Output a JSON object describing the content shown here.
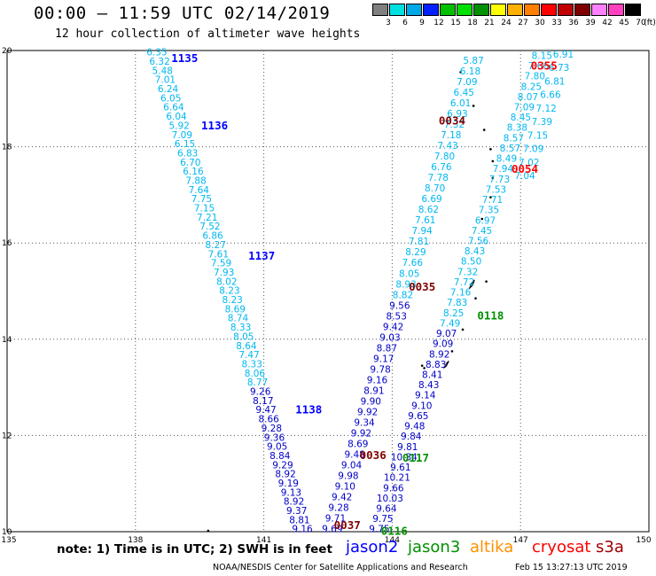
{
  "header": {
    "title": "00:00 – 11:59 UTC 02/14/2019",
    "subtitle": "12 hour collection of altimeter wave heights"
  },
  "colorbar": {
    "levels": [
      {
        "label": "3",
        "color": "#808080"
      },
      {
        "label": "6",
        "color": "#00e0e0"
      },
      {
        "label": "9",
        "color": "#00a8e8"
      },
      {
        "label": "12",
        "color": "#0020ff"
      },
      {
        "label": "15",
        "color": "#00c000"
      },
      {
        "label": "18",
        "color": "#00e000"
      },
      {
        "label": "21",
        "color": "#009000"
      },
      {
        "label": "24",
        "color": "#ffff00"
      },
      {
        "label": "27",
        "color": "#ffb000"
      },
      {
        "label": "30",
        "color": "#ff8000"
      },
      {
        "label": "33",
        "color": "#ff0000"
      },
      {
        "label": "36",
        "color": "#c00000"
      },
      {
        "label": "39",
        "color": "#800000"
      },
      {
        "label": "42",
        "color": "#ff80ff"
      },
      {
        "label": "45",
        "color": "#ff40c0"
      },
      {
        "label": "70",
        "color": "#000000"
      }
    ],
    "unit": "(ft)"
  },
  "footer": {
    "note": "note: 1) Time is in UTC; 2) SWH is in feet",
    "credit": "NOAA/NESDIS Center for Satellite Applications and Research",
    "timestamp": "Feb 15 13:27:13 UTC 2019"
  },
  "legend": [
    {
      "name": "jason2",
      "color": "#0000ff"
    },
    {
      "name": "jason3",
      "color": "#009000"
    },
    {
      "name": "altika",
      "color": "#ff9000"
    },
    {
      "name": "cryosat",
      "color": "#ff0000"
    },
    {
      "name": "s3a",
      "color": "#a00000"
    }
  ],
  "chart_data": {
    "type": "scatter",
    "xlim": [
      135,
      150
    ],
    "ylim": [
      10,
      20
    ],
    "xticks": [
      135,
      138,
      141,
      144,
      147,
      150
    ],
    "yticks": [
      10,
      12,
      14,
      16,
      18,
      20
    ],
    "grid": true,
    "tracks": [
      {
        "label": "1135",
        "label_color": "#0000ff",
        "color": "#00b8f0",
        "x0": 138.5,
        "x1": 141.9,
        "y0": 19.97,
        "y1": 10.06,
        "values": [
          "6.35",
          "6.32",
          "5.48",
          "7.01",
          "6.24",
          "6.05",
          "6.64",
          "6.04",
          "5.92",
          "7.09",
          "6.15",
          "6.83",
          "6.70",
          "6.16",
          "7.88",
          "7.64",
          "7.75",
          "7.15",
          "7.21",
          "7.52",
          "6.86",
          "8.27",
          "7.61",
          "7.59",
          "7.93",
          "8.02",
          "8.23",
          "8.23",
          "8.69",
          "8.74",
          "8.33",
          "8.05",
          "8.64",
          "7.47",
          "8.33",
          "8.06",
          "8.77",
          "9.26",
          "8.17",
          "9.47",
          "8.66",
          "9.28",
          "9.36",
          "9.05",
          "8.84",
          "9.29",
          "8.92",
          "9.19",
          "9.13",
          "8.92",
          "9.37",
          "8.81",
          "9.16"
        ],
        "dark_from": 37
      },
      {
        "label": "0034",
        "label_color": "#800000",
        "color": "#00b8f0",
        "x0": 145.9,
        "x1": 142.6,
        "y0": 19.8,
        "y1": 10.06,
        "values": [
          "5.87",
          "6.18",
          "7.09",
          "6.45",
          "6.01",
          "6.93",
          "7.32",
          "7.18",
          "7.43",
          "7.80",
          "6.76",
          "7.78",
          "8.70",
          "6.69",
          "8.62",
          "7.61",
          "7.94",
          "7.81",
          "8.29",
          "7.66",
          "8.05",
          "8.93",
          "8.82",
          "9.56",
          "8.53",
          "9.42",
          "9.03",
          "8.87",
          "9.17",
          "9.78",
          "9.16",
          "8.91",
          "9.90",
          "9.92",
          "9.34",
          "9.92",
          "8.69",
          "9.48",
          "9.04",
          "9.98",
          "9.10",
          "9.42",
          "9.28",
          "9.71",
          "9.69"
        ],
        "dark_from": 23
      },
      {
        "label": "0355",
        "label_color": "#ff0000",
        "color": "#00b8f0",
        "x0": 147.5,
        "x1": 143.7,
        "y0": 19.9,
        "y1": 10.06,
        "values": [
          "8.15",
          "7.66",
          "7.80",
          "8.25",
          "8.07",
          "7.09",
          "8.45",
          "8.38",
          "8.57",
          "8.57",
          "8.49",
          "7.94",
          "7.73",
          "7.53",
          "7.71",
          "7.35",
          "6.97",
          "7.45",
          "7.56",
          "8.43",
          "8.50",
          "7.32",
          "7.72",
          "7.16",
          "7.83",
          "8.25",
          "7.49",
          "9.07",
          "9.09",
          "8.92",
          "8.83",
          "8.41",
          "8.43",
          "9.14",
          "9.10",
          "9.65",
          "9.48",
          "9.84",
          "9.81",
          "10.34",
          "9.61",
          "10.21",
          "9.66",
          "10.03",
          "9.64",
          "9.75",
          "9.75"
        ],
        "dark_from": 27
      },
      {
        "label": "",
        "label_color": "#00a8e8",
        "color": "#00b8f0",
        "x0": 148.0,
        "x1": 147.1,
        "y0": 19.93,
        "y1": 17.4,
        "values": [
          "6.91",
          "6.73",
          "6.81",
          "6.66",
          "7.12",
          "7.39",
          "7.15",
          "7.09",
          "7.02",
          "7.04"
        ],
        "dark_from": 99
      },
      {
        "label": "1136",
        "label_color": "#0000ff",
        "color": "#00b8f0",
        "x0": 0,
        "x1": 0,
        "y0": 0,
        "y1": 0,
        "values": [],
        "dark_from": 99
      }
    ],
    "pass_labels": [
      {
        "text": "1135",
        "color": "#0000ff",
        "x": 139.15,
        "y": 19.85
      },
      {
        "text": "1136",
        "color": "#0000ff",
        "x": 139.85,
        "y": 18.45
      },
      {
        "text": "1137",
        "color": "#0000ff",
        "x": 140.95,
        "y": 15.75
      },
      {
        "text": "1138",
        "color": "#0000ff",
        "x": 142.05,
        "y": 12.55
      },
      {
        "text": "0034",
        "color": "#800000",
        "x": 145.4,
        "y": 18.55
      },
      {
        "text": "0355",
        "color": "#ff0000",
        "x": 147.55,
        "y": 19.7
      },
      {
        "text": "0054",
        "color": "#ff0000",
        "x": 147.1,
        "y": 17.55
      },
      {
        "text": "0035",
        "color": "#800000",
        "x": 144.7,
        "y": 15.1
      },
      {
        "text": "0118",
        "color": "#009000",
        "x": 146.3,
        "y": 14.5
      },
      {
        "text": "0117",
        "color": "#009000",
        "x": 144.55,
        "y": 11.55
      },
      {
        "text": "0036",
        "color": "#800000",
        "x": 143.55,
        "y": 11.6
      },
      {
        "text": "0116",
        "color": "#009000",
        "x": 144.05,
        "y": 10.03
      },
      {
        "text": "0037",
        "color": "#800000",
        "x": 142.95,
        "y": 10.15
      }
    ]
  }
}
